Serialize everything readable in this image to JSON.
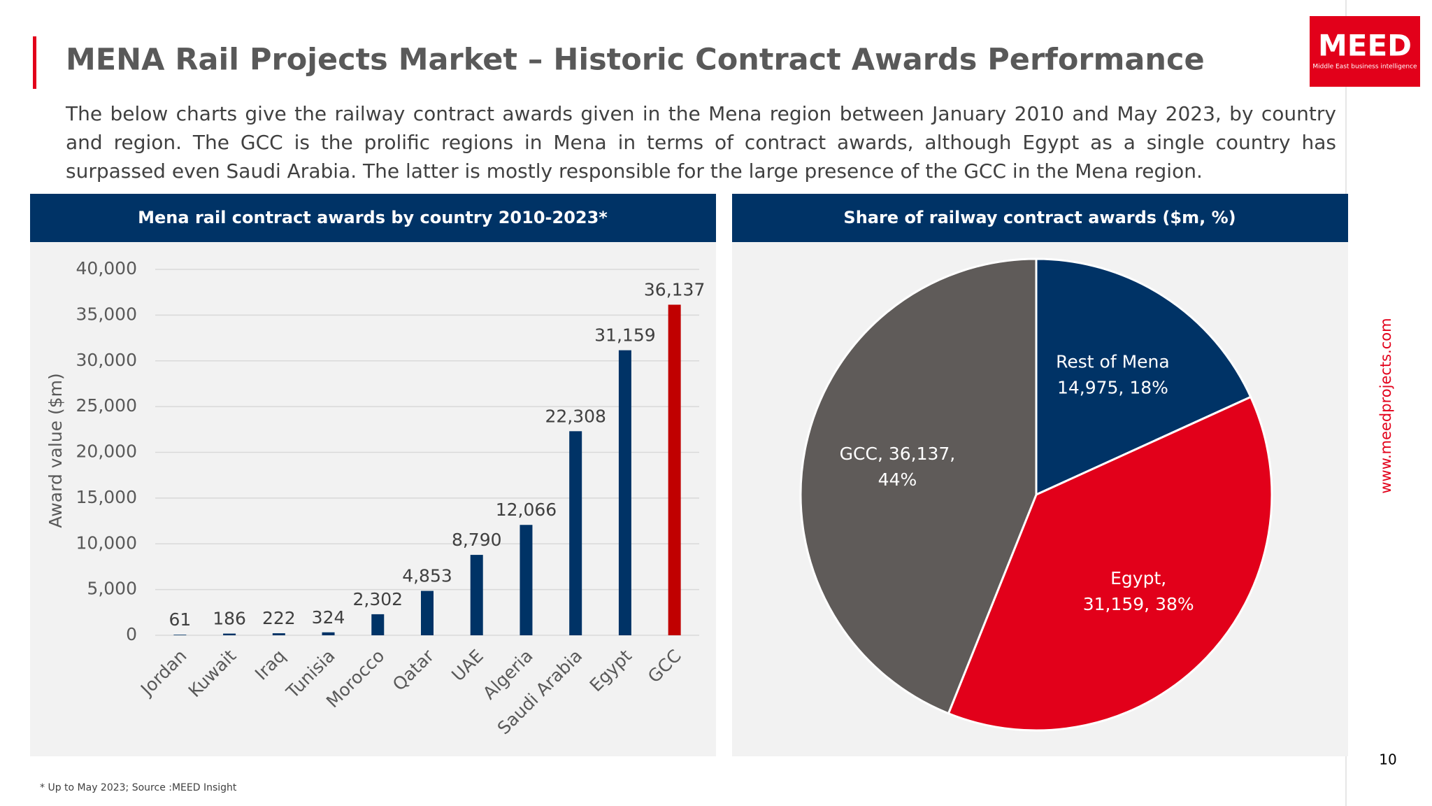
{
  "header": {
    "title": "MENA Rail Projects Market – Historic Contract Awards Performance",
    "description": "The below charts give the railway contract awards given in the Mena region between January 2010 and May 2023, by country and region. The GCC is the prolific regions in Mena in terms of contract awards, although Egypt as a single country has surpassed even Saudi Arabia. The latter is mostly responsible for the large presence of the GCC in the Mena region."
  },
  "logo": {
    "name": "MEED",
    "tagline": "Middle East business intelligence"
  },
  "side_url": "www.meedprojects.com",
  "page_number": "10",
  "footnote": "* Up to May 2023; Source :MEED Insight",
  "chart_data": [
    {
      "type": "bar",
      "title": "Mena rail contract awards by country 2010-2023*",
      "y_label": "Award value ($m)",
      "categories": [
        "Jordan",
        "Kuwait",
        "Iraq",
        "Tunisia",
        "Morocco",
        "Qatar",
        "UAE",
        "Algeria",
        "Saudi Arabia",
        "Egypt",
        "GCC"
      ],
      "values": [
        61,
        186,
        222,
        324,
        2302,
        4853,
        8790,
        12066,
        22308,
        31159,
        36137
      ],
      "value_labels": [
        "61",
        "186",
        "222",
        "324",
        "2,302",
        "4,853",
        "8,790",
        "12,066",
        "22,308",
        "31,159",
        "36,137"
      ],
      "colors": [
        "#003366",
        "#003366",
        "#003366",
        "#003366",
        "#003366",
        "#003366",
        "#003366",
        "#003366",
        "#003366",
        "#003366",
        "#c00000"
      ],
      "ylim": [
        0,
        40000
      ],
      "yticks": [
        0,
        {
          "value": 5000,
          "label": "5,000"
        },
        {
          "value": 10000,
          "label": "10,000"
        },
        {
          "value": 15000,
          "label": "15,000"
        },
        {
          "value": 20000,
          "label": "20,000"
        },
        {
          "value": 25000,
          "label": "25,000"
        },
        {
          "value": 30000,
          "label": "30,000"
        },
        {
          "value": 35000,
          "label": "35,000"
        },
        {
          "value": 40000,
          "label": "40,000"
        }
      ],
      "grid": true
    },
    {
      "type": "pie",
      "title": "Share of railway contract awards ($m, %)",
      "values": [
        14975,
        31159,
        36137
      ],
      "value_labels": [
        [
          "Rest of Mena",
          "14,975, 18%"
        ],
        [
          "Egypt,",
          "31,159, 38%"
        ],
        [
          "GCC, 36,137,",
          "44%"
        ]
      ],
      "colors": [
        "#003366",
        "#e2001a",
        "#5f5b59"
      ]
    }
  ]
}
